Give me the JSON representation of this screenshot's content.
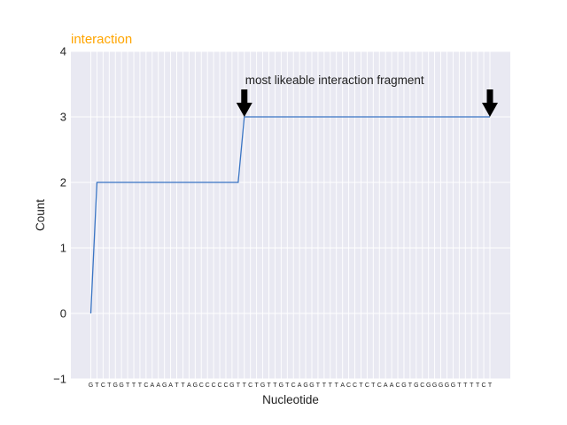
{
  "chart_data": {
    "type": "line",
    "title": "interaction",
    "title_color": "#ffa500",
    "xlabel": "Nucleotide",
    "ylabel": "Count",
    "ylim": [
      -1,
      4
    ],
    "yticks": [
      "−1",
      "0",
      "1",
      "2",
      "3",
      "4"
    ],
    "grid": true,
    "background": "#e9e9f2",
    "line_color": "#3a75c4",
    "categories": [
      "G",
      "T",
      "C",
      "T",
      "G",
      "G",
      "T",
      "T",
      "T",
      "C",
      "A",
      "A",
      "G",
      "A",
      "T",
      "T",
      "A",
      "G",
      "C",
      "C",
      "C",
      "C",
      "C",
      "G",
      "T",
      "T",
      "C",
      "T",
      "G",
      "T",
      "T",
      "G",
      "T",
      "C",
      "A",
      "G",
      "G",
      "T",
      "T",
      "T",
      "T",
      "A",
      "C",
      "C",
      "T",
      "C",
      "T",
      "C",
      "A",
      "A",
      "C",
      "G",
      "T",
      "G",
      "C",
      "G",
      "G",
      "G",
      "G",
      "G",
      "T",
      "T",
      "T",
      "T",
      "C",
      "T"
    ],
    "series": [
      {
        "values": [
          0,
          2,
          2,
          2,
          2,
          2,
          2,
          2,
          2,
          2,
          2,
          2,
          2,
          2,
          2,
          2,
          2,
          2,
          2,
          2,
          2,
          2,
          2,
          2,
          2,
          3,
          3,
          3,
          3,
          3,
          3,
          3,
          3,
          3,
          3,
          3,
          3,
          3,
          3,
          3,
          3,
          3,
          3,
          3,
          3,
          3,
          3,
          3,
          3,
          3,
          3,
          3,
          3,
          3,
          3,
          3,
          3,
          3,
          3,
          3,
          3,
          3,
          3,
          3,
          3,
          3
        ]
      }
    ],
    "annotations": [
      {
        "text": "most likeable interaction fragment",
        "arrow_x_index": 25,
        "arrow_y": 3,
        "icon": "down-arrow"
      },
      {
        "text": "",
        "arrow_x_index": 65,
        "arrow_y": 3,
        "icon": "down-arrow"
      }
    ]
  }
}
